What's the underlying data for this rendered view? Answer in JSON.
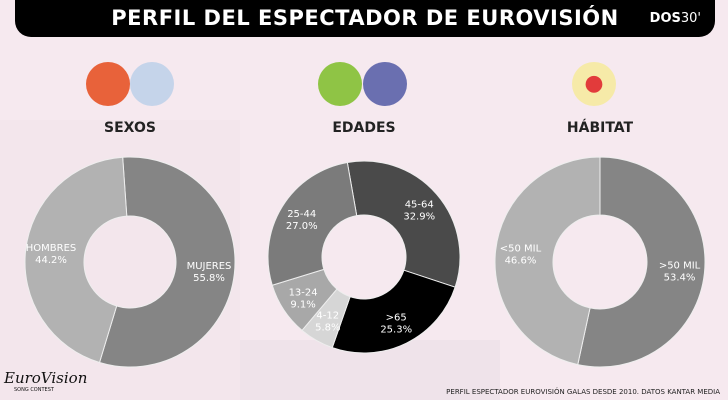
{
  "header": {
    "title": "PERFIL DEL ESPECTADOR DE EUROVISIÓN",
    "logo": "DOS",
    "logo_suffix": "30'"
  },
  "footer": {
    "source": "PERFIL ESPECTADOR EUROVISIÓN GALAS DESDE 2010. DATOS KANTAR MEDIA",
    "brand": "EuroVision",
    "brand_sub": "SONG CONTEST"
  },
  "chart_data": [
    {
      "type": "pie",
      "title": "SEXOS",
      "slices": [
        {
          "label": "MUJERES",
          "value": 55.8,
          "text": "55.8%",
          "color": "#858585"
        },
        {
          "label": "HOMBRES",
          "value": 44.2,
          "text": "44.2%",
          "color": "#b2b2b2"
        }
      ]
    },
    {
      "type": "pie",
      "title": "EDADES",
      "slices": [
        {
          "label": "45-64",
          "value": 32.9,
          "text": "32.9%",
          "color": "#4a4a4a"
        },
        {
          "label": ">65",
          "value": 25.3,
          "text": "25.3%",
          "color": "#000000"
        },
        {
          "label": "4-12",
          "value": 5.8,
          "text": "5.8%",
          "color": "#d6d6d6"
        },
        {
          "label": "13-24",
          "value": 9.1,
          "text": "9.1%",
          "color": "#a8a8a8"
        },
        {
          "label": "25-44",
          "value": 27.0,
          "text": "27.0%",
          "color": "#7b7b7b"
        }
      ]
    },
    {
      "type": "pie",
      "title": "HÁBITAT",
      "slices": [
        {
          "label": ">50 MIL",
          "value": 53.4,
          "text": "53.4%",
          "color": "#858585"
        },
        {
          "label": "<50 MIL",
          "value": 46.6,
          "text": "46.6%",
          "color": "#b2b2b2"
        }
      ]
    }
  ]
}
